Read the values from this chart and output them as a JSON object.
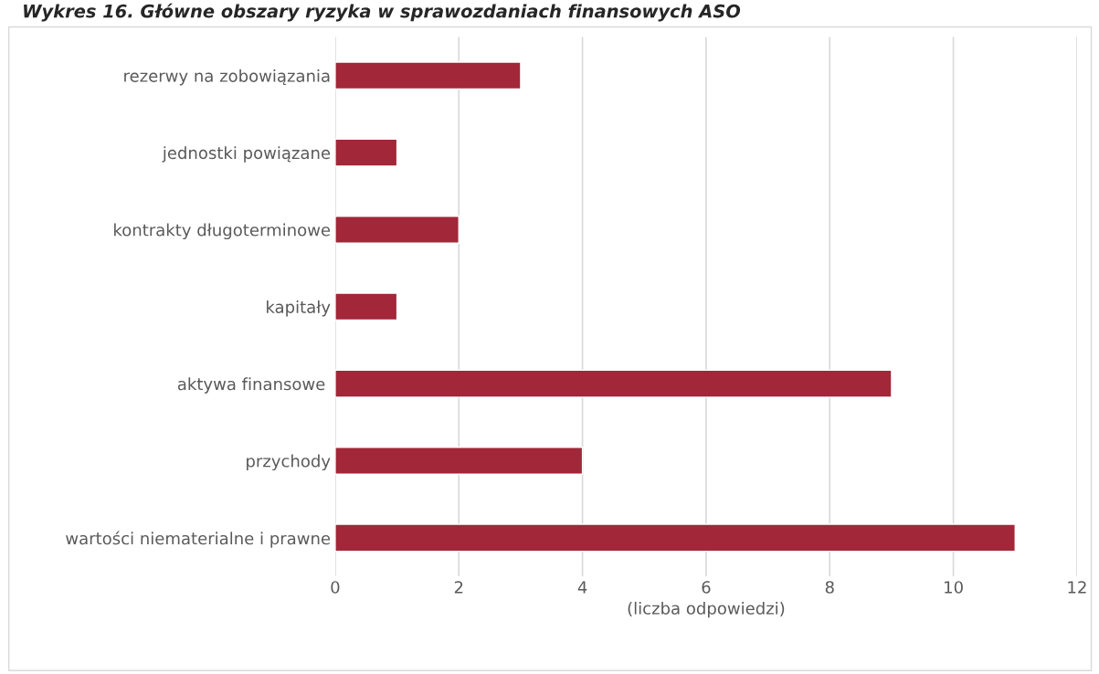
{
  "chart_data": {
    "type": "bar",
    "orientation": "horizontal",
    "title": "Wykres 16. Główne obszary ryzyka w sprawozdaniach finansowych ASO",
    "xlabel": "(liczba odpowiedzi)",
    "categories": [
      "rezerwy na zobowiązania",
      "jednostki powiązane",
      "kontrakty długoterminowe",
      "kapitały",
      "aktywa finansowe ",
      "przychody",
      "wartości niematerialne i prawne"
    ],
    "values": [
      3,
      1,
      2,
      1,
      9,
      4,
      11
    ],
    "color": "#a12739",
    "xlim": [
      0,
      12
    ],
    "xticks": [
      0,
      2,
      4,
      6,
      8,
      10,
      12
    ],
    "grid": "x"
  }
}
